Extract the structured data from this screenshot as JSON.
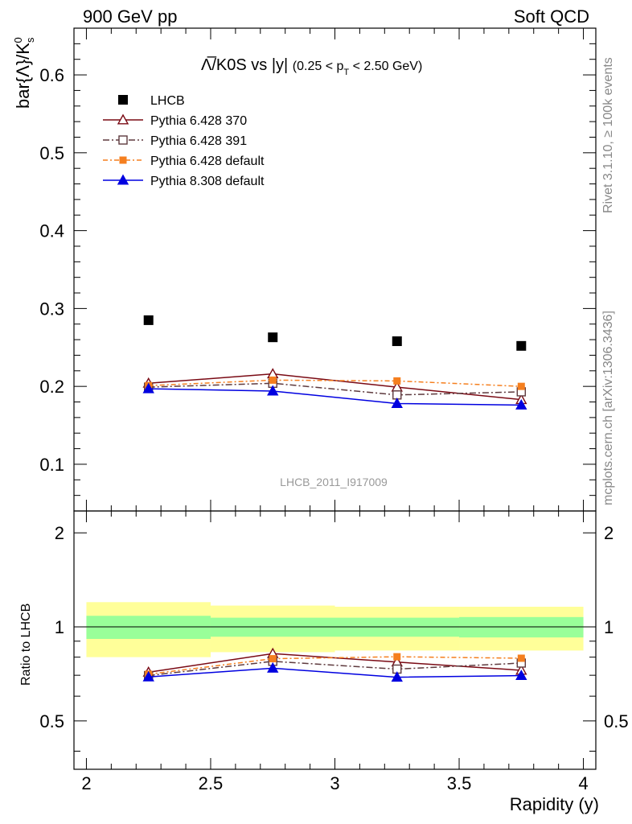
{
  "header": {
    "left": "900 GeV pp",
    "right": "Soft QCD"
  },
  "side_labels": {
    "top": "Rivet 3.1.10, ≥ 100k events",
    "bottom": "mcplots.cern.ch [arXiv:1306.3436]"
  },
  "colors": {
    "LHCB": "#000000",
    "py370": "#7a0a14",
    "py391": "#5e3a3e",
    "pydefault": "#f57f1f",
    "py8": "#0000e0",
    "band_inner": "#99ff99",
    "band_outer": "#ffff99"
  },
  "chart_data": {
    "type": "scatter",
    "title": "Λ̅/K0S vs |y|",
    "title_range": "(0.25 < p",
    "title_range_sub": "T",
    "title_range_tail": " < 2.50 GeV)",
    "watermark": "LHCB_2011_I917009",
    "xlabel": "Rapidity (y)",
    "ylabel_main": "bar{Λ}/K",
    "ylabel_main_sup": "0",
    "ylabel_main_sub": "s",
    "ylabel_ratio": "Ratio to LHCB",
    "xlim": [
      1.95,
      4.05
    ],
    "ylim_main": [
      0.04,
      0.66
    ],
    "ylim_ratio": [
      0.35,
      2.35
    ],
    "ratio_log": true,
    "x_ticks": [
      {
        "v": 2,
        "label": "2"
      },
      {
        "v": 2.5,
        "label": "2.5"
      },
      {
        "v": 3,
        "label": "3"
      },
      {
        "v": 3.5,
        "label": "3.5"
      },
      {
        "v": 4,
        "label": "4"
      }
    ],
    "y_ticks_main": [
      {
        "v": 0.1,
        "label": "0.1"
      },
      {
        "v": 0.2,
        "label": "0.2"
      },
      {
        "v": 0.3,
        "label": "0.3"
      },
      {
        "v": 0.4,
        "label": "0.4"
      },
      {
        "v": 0.5,
        "label": "0.5"
      },
      {
        "v": 0.6,
        "label": "0.6"
      }
    ],
    "y_ticks_ratio": [
      {
        "v": 0.5,
        "label": "0.5"
      },
      {
        "v": 1,
        "label": "1"
      },
      {
        "v": 2,
        "label": "2"
      }
    ],
    "bins": [
      [
        2.0,
        2.5
      ],
      [
        2.5,
        3.0
      ],
      [
        3.0,
        3.5
      ],
      [
        3.5,
        4.0
      ]
    ],
    "x": [
      2.25,
      2.75,
      3.25,
      3.75
    ],
    "data": {
      "name": "LHCB",
      "values": [
        0.285,
        0.263,
        0.258,
        0.252
      ],
      "band_inner": [
        0.085,
        0.07,
        0.07,
        0.075
      ],
      "band_outer": [
        0.2,
        0.17,
        0.16,
        0.16
      ]
    },
    "series": [
      {
        "key": "py370",
        "name": "Pythia 6.428 370",
        "values": [
          0.204,
          0.216,
          0.199,
          0.183
        ],
        "marker": "triangle-open",
        "dash": ""
      },
      {
        "key": "py391",
        "name": "Pythia 6.428 391",
        "values": [
          0.199,
          0.204,
          0.189,
          0.193
        ],
        "marker": "square-open",
        "dash": "8,3,2,3"
      },
      {
        "key": "pydefault",
        "name": "Pythia 6.428 default",
        "values": [
          0.201,
          0.208,
          0.207,
          0.2
        ],
        "marker": "square-filled-small",
        "dash": "6,3,2,3"
      },
      {
        "key": "py8",
        "name": "Pythia 8.308 default",
        "values": [
          0.197,
          0.194,
          0.178,
          0.176
        ],
        "marker": "triangle-filled",
        "dash": ""
      }
    ]
  }
}
